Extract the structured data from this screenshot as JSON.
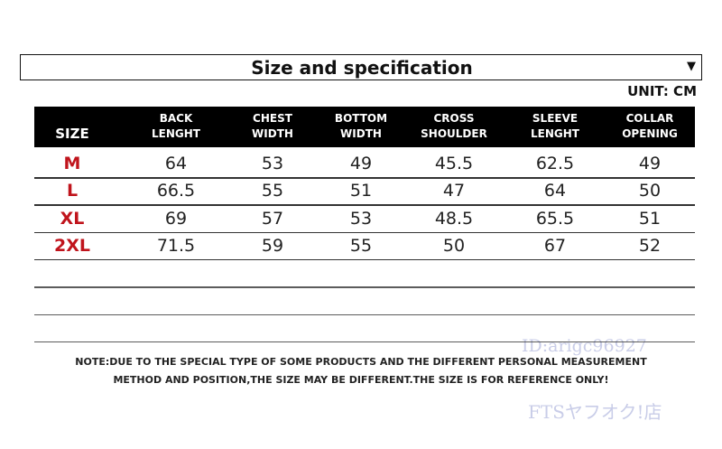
{
  "header": {
    "title": "Size and specification",
    "arrow": "▼",
    "unit": "UNIT: CM"
  },
  "table": {
    "columns": [
      [
        "SIZE"
      ],
      [
        "BACK",
        "LENGHT"
      ],
      [
        "CHEST",
        "WIDTH"
      ],
      [
        "BOTTOM",
        "WIDTH"
      ],
      [
        "CROSS",
        "SHOULDER"
      ],
      [
        "SLEEVE",
        "LENGHT"
      ],
      [
        "COLLAR",
        "OPENING"
      ]
    ],
    "rows": [
      [
        "M",
        "64",
        "53",
        "49",
        "45.5",
        "62.5",
        "49"
      ],
      [
        "L",
        "66.5",
        "55",
        "51",
        "47",
        "64",
        "50"
      ],
      [
        "XL",
        "69",
        "57",
        "53",
        "48.5",
        "65.5",
        "51"
      ],
      [
        "2XL",
        "71.5",
        "59",
        "55",
        "50",
        "67",
        "52"
      ]
    ]
  },
  "note": [
    "NOTE:DUE TO THE SPECIAL TYPE OF SOME PRODUCTS AND THE DIFFERENT PERSONAL MEASUREMENT",
    "METHOD AND POSITION,THE SIZE MAY BE DIFFERENT.THE SIZE IS FOR REFERENCE ONLY!"
  ],
  "watermarks": [
    "ID:arigc96927",
    "FTSヤフオク!店"
  ]
}
